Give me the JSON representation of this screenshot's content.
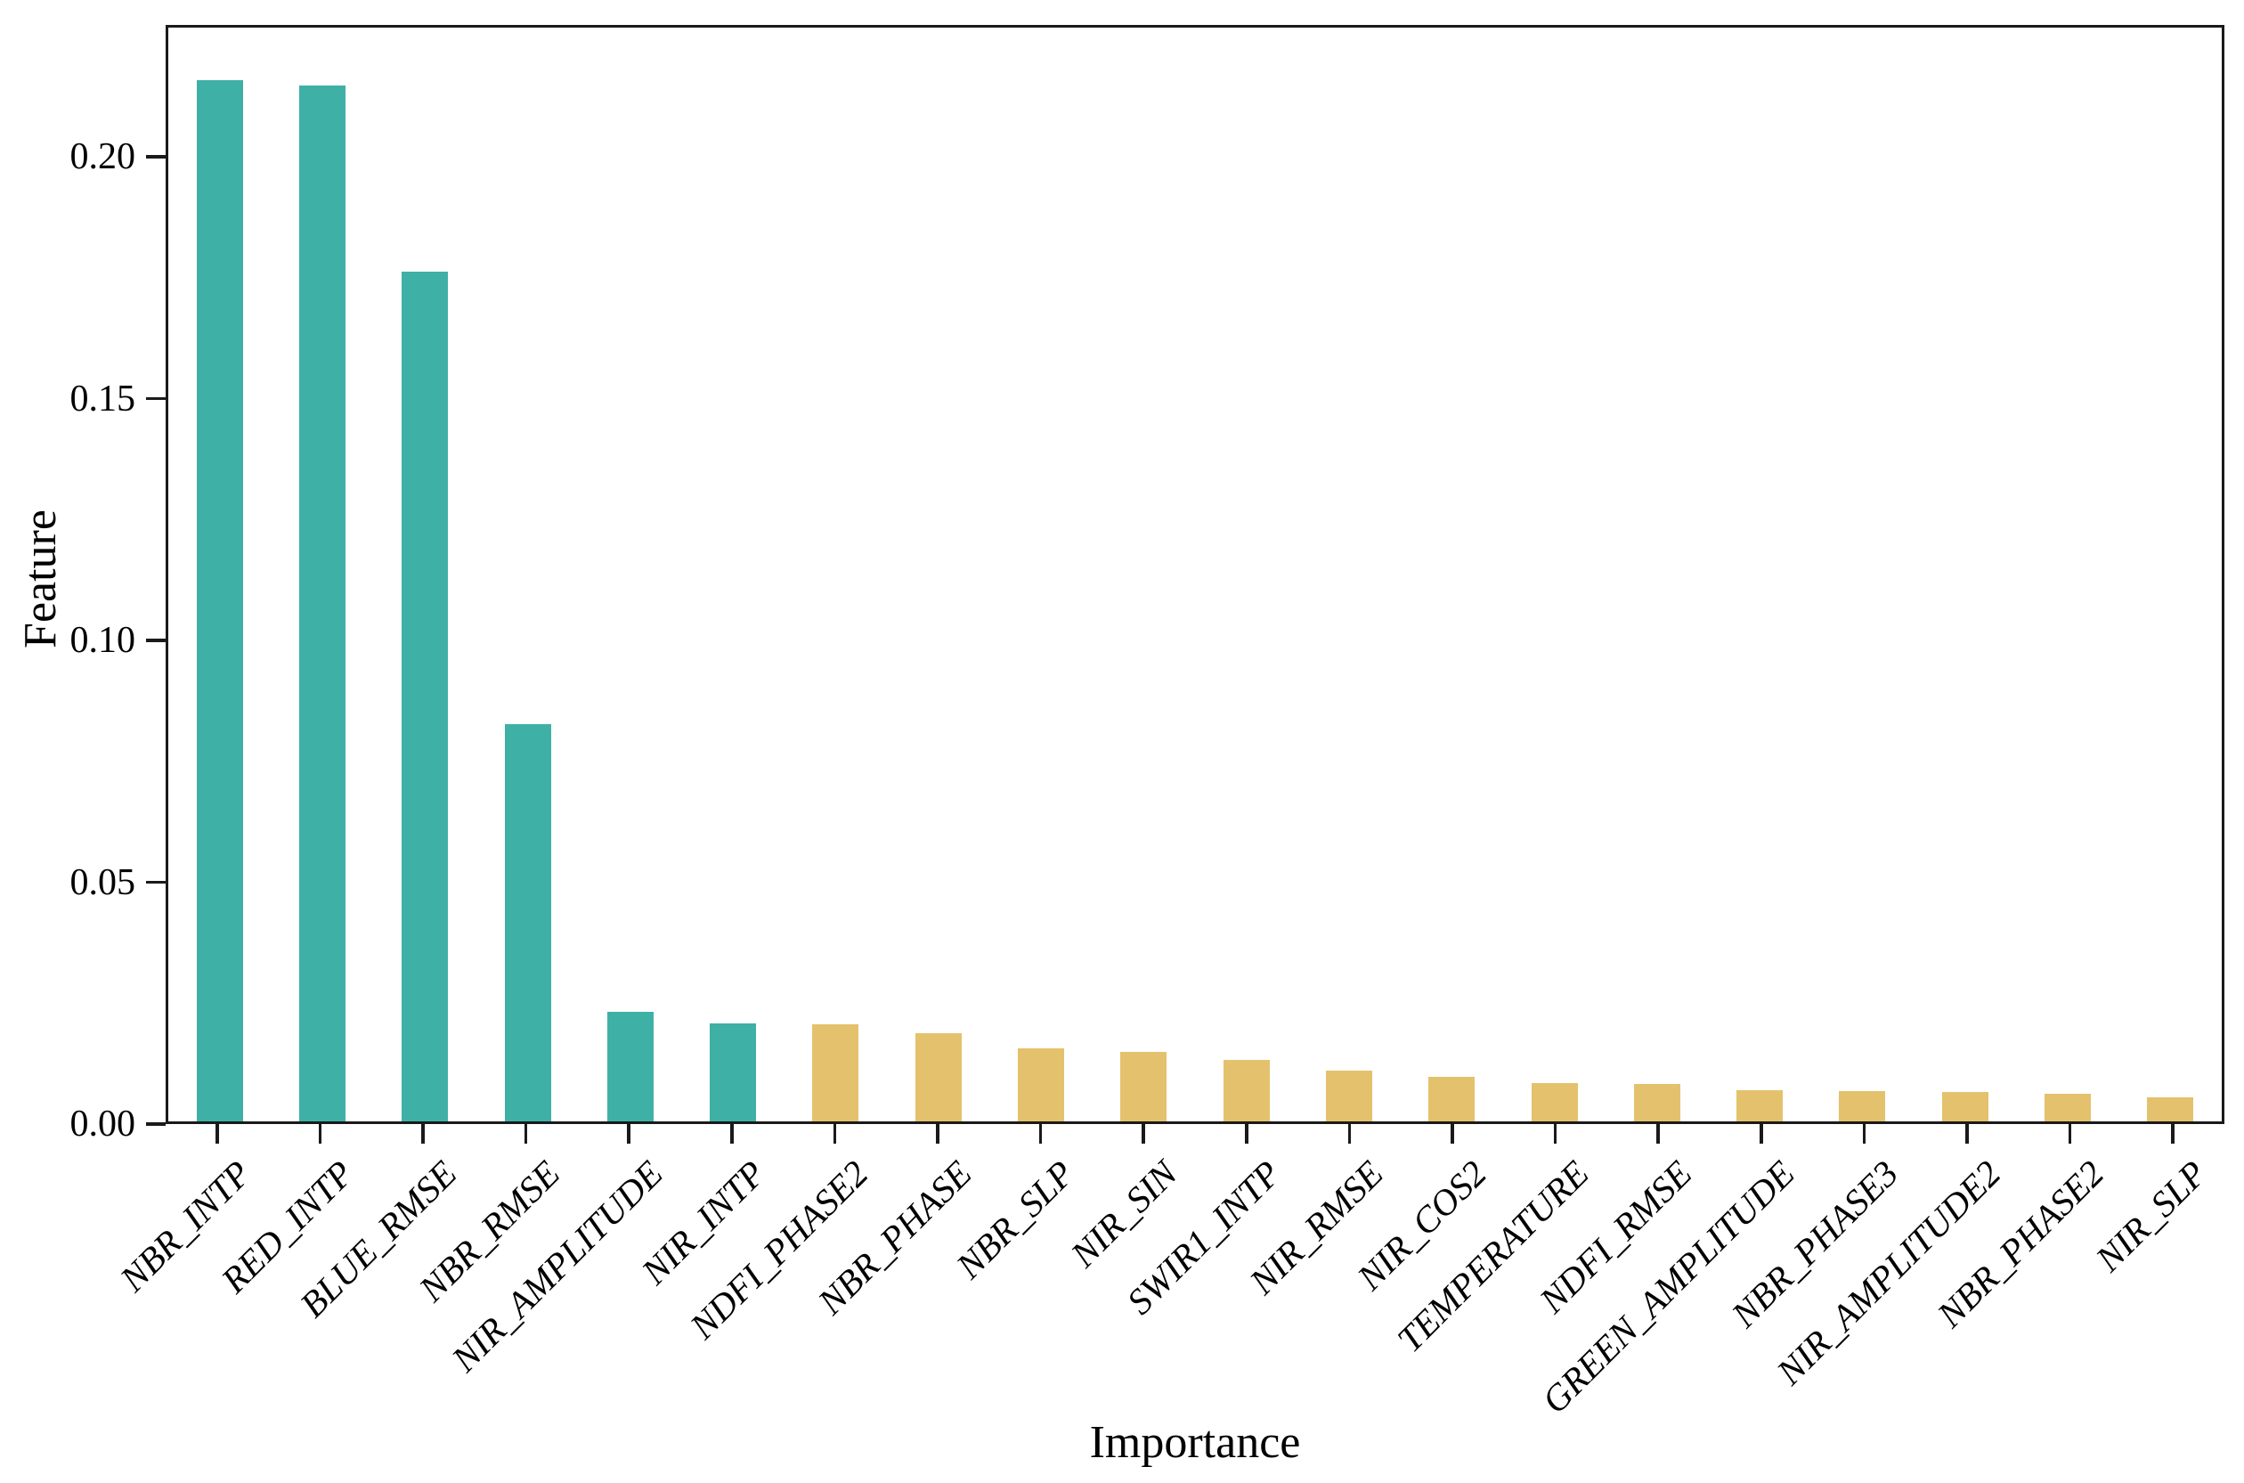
{
  "chart_data": {
    "type": "bar",
    "title": "",
    "xlabel": "Importance",
    "ylabel": "Feature",
    "categories": [
      "NBR_INTP",
      "RED_INTP",
      "BLUE_RMSE",
      "NBR_RMSE",
      "NIR_AMPLITUDE",
      "NIR_INTP",
      "NDFI_PHASE2",
      "NBR_PHASE",
      "NBR_SLP",
      "NIR_SIN",
      "SWIR1_INTP",
      "NIR_RMSE",
      "NIR_COS2",
      "TEMPERATURE",
      "NDFI_RMSE",
      "GREEN_AMPLITUDE",
      "NBR_PHASE3",
      "NIR_AMPLITUDE2",
      "NBR_PHASE2",
      "NIR_SLP"
    ],
    "values": [
      0.2165,
      0.2155,
      0.1768,
      0.0827,
      0.0228,
      0.0203,
      0.0201,
      0.0183,
      0.0151,
      0.0144,
      0.0127,
      0.0105,
      0.0092,
      0.0079,
      0.0078,
      0.0065,
      0.0063,
      0.0061,
      0.0058,
      0.005
    ],
    "bar_color_groups": [
      "teal",
      "teal",
      "teal",
      "teal",
      "teal",
      "teal",
      "tan",
      "tan",
      "tan",
      "tan",
      "tan",
      "tan",
      "tan",
      "tan",
      "tan",
      "tan",
      "tan",
      "tan",
      "tan",
      "tan"
    ],
    "colors": {
      "teal": "#3fb0a6",
      "tan": "#e4c16d",
      "axis": "#1a1a1a"
    },
    "ylim": [
      0,
      0.2273
    ],
    "yticks": [
      "0.00",
      "0.05",
      "0.10",
      "0.15",
      "0.20"
    ],
    "grid": false,
    "legend": null,
    "xtick_label_style": "italic, rotated 45deg",
    "legend_position": "none"
  }
}
